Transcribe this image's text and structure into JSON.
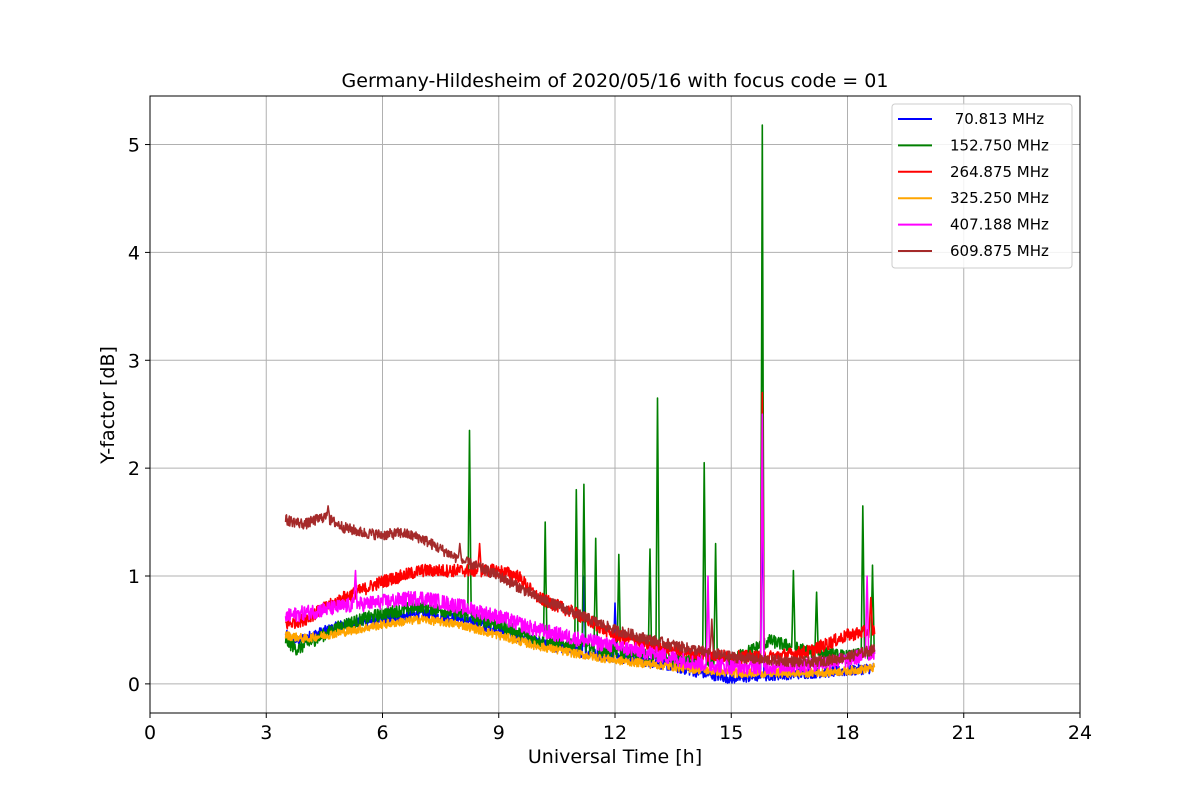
{
  "chart_data": {
    "type": "line",
    "title": "Germany-Hildesheim of 2020/05/16 with focus code = 01",
    "xlabel": "Universal Time [h]",
    "ylabel": "Y-factor [dB]",
    "xlim": [
      0,
      24
    ],
    "ylim": [
      -0.27,
      5.45
    ],
    "xticks": [
      0,
      3,
      6,
      9,
      12,
      15,
      18,
      21,
      24
    ],
    "yticks": [
      0,
      1,
      2,
      3,
      4,
      5
    ],
    "grid": true,
    "legend_position": "top-right",
    "series": [
      {
        "name": " 70.813 MHz",
        "color": "#0000ff",
        "noise": 0.05,
        "points": [
          [
            3.5,
            0.45
          ],
          [
            3.8,
            0.4
          ],
          [
            4.2,
            0.45
          ],
          [
            5,
            0.55
          ],
          [
            6,
            0.6
          ],
          [
            7,
            0.65
          ],
          [
            8,
            0.6
          ],
          [
            9,
            0.5
          ],
          [
            10,
            0.38
          ],
          [
            11,
            0.3
          ],
          [
            12,
            0.25
          ],
          [
            13,
            0.2
          ],
          [
            14,
            0.12
          ],
          [
            15,
            0.05
          ],
          [
            16,
            0.08
          ],
          [
            17,
            0.1
          ],
          [
            18,
            0.12
          ],
          [
            18.7,
            0.15
          ]
        ],
        "spikes": [
          [
            11.2,
            1.0
          ],
          [
            12.0,
            0.75
          ],
          [
            15.8,
            2.0
          ]
        ]
      },
      {
        "name": "152.750 MHz",
        "color": "#008000",
        "noise": 0.06,
        "points": [
          [
            3.5,
            0.4
          ],
          [
            3.8,
            0.32
          ],
          [
            4.2,
            0.4
          ],
          [
            5,
            0.55
          ],
          [
            6,
            0.65
          ],
          [
            7,
            0.72
          ],
          [
            8,
            0.65
          ],
          [
            9,
            0.55
          ],
          [
            10,
            0.4
          ],
          [
            11,
            0.35
          ],
          [
            12,
            0.3
          ],
          [
            13,
            0.25
          ],
          [
            14,
            0.2
          ],
          [
            15,
            0.22
          ],
          [
            16,
            0.4
          ],
          [
            17,
            0.3
          ],
          [
            18,
            0.25
          ],
          [
            18.7,
            0.3
          ]
        ],
        "spikes": [
          [
            8.25,
            2.35
          ],
          [
            10.2,
            1.5
          ],
          [
            11.0,
            1.8
          ],
          [
            11.2,
            1.85
          ],
          [
            11.5,
            1.35
          ],
          [
            12.1,
            1.2
          ],
          [
            12.9,
            1.25
          ],
          [
            13.1,
            2.65
          ],
          [
            14.3,
            2.05
          ],
          [
            14.6,
            1.3
          ],
          [
            15.8,
            5.18
          ],
          [
            16.6,
            1.05
          ],
          [
            17.2,
            0.85
          ],
          [
            18.4,
            1.65
          ],
          [
            18.65,
            1.1
          ]
        ]
      },
      {
        "name": "264.875 MHz",
        "color": "#ff0000",
        "noise": 0.06,
        "points": [
          [
            3.5,
            0.55
          ],
          [
            4,
            0.6
          ],
          [
            5,
            0.8
          ],
          [
            6,
            0.95
          ],
          [
            7,
            1.05
          ],
          [
            8,
            1.05
          ],
          [
            9,
            1.05
          ],
          [
            9.5,
            1.0
          ],
          [
            10,
            0.8
          ],
          [
            11,
            0.65
          ],
          [
            12,
            0.45
          ],
          [
            13,
            0.35
          ],
          [
            14,
            0.28
          ],
          [
            15,
            0.25
          ],
          [
            16,
            0.25
          ],
          [
            17,
            0.3
          ],
          [
            18,
            0.45
          ],
          [
            18.7,
            0.5
          ]
        ],
        "spikes": [
          [
            8.5,
            1.3
          ],
          [
            15.8,
            2.7
          ],
          [
            18.6,
            0.8
          ]
        ]
      },
      {
        "name": "325.250 MHz",
        "color": "#ffa500",
        "noise": 0.04,
        "points": [
          [
            3.5,
            0.45
          ],
          [
            4,
            0.42
          ],
          [
            5,
            0.48
          ],
          [
            6,
            0.55
          ],
          [
            7,
            0.6
          ],
          [
            8,
            0.55
          ],
          [
            9,
            0.45
          ],
          [
            10,
            0.35
          ],
          [
            11,
            0.28
          ],
          [
            12,
            0.22
          ],
          [
            13,
            0.18
          ],
          [
            14,
            0.14
          ],
          [
            15,
            0.1
          ],
          [
            16,
            0.1
          ],
          [
            17,
            0.1
          ],
          [
            18,
            0.12
          ],
          [
            18.7,
            0.15
          ]
        ],
        "spikes": []
      },
      {
        "name": "407.188 MHz",
        "color": "#ff00ff",
        "noise": 0.07,
        "points": [
          [
            3.5,
            0.62
          ],
          [
            4,
            0.66
          ],
          [
            5,
            0.72
          ],
          [
            6,
            0.76
          ],
          [
            7,
            0.8
          ],
          [
            8,
            0.72
          ],
          [
            9,
            0.62
          ],
          [
            10,
            0.5
          ],
          [
            11,
            0.42
          ],
          [
            12,
            0.35
          ],
          [
            13,
            0.28
          ],
          [
            14,
            0.2
          ],
          [
            15,
            0.16
          ],
          [
            16,
            0.16
          ],
          [
            17,
            0.18
          ],
          [
            18,
            0.22
          ],
          [
            18.7,
            0.3
          ]
        ],
        "spikes": [
          [
            5.3,
            1.05
          ],
          [
            14.4,
            1.0
          ],
          [
            15.8,
            2.5
          ],
          [
            18.5,
            1.0
          ]
        ]
      },
      {
        "name": "609.875 MHz",
        "color": "#a52a2a",
        "noise": 0.05,
        "points": [
          [
            3.5,
            1.52
          ],
          [
            4,
            1.48
          ],
          [
            4.5,
            1.55
          ],
          [
            5,
            1.45
          ],
          [
            5.5,
            1.4
          ],
          [
            6,
            1.38
          ],
          [
            6.5,
            1.4
          ],
          [
            7,
            1.35
          ],
          [
            7.5,
            1.25
          ],
          [
            8,
            1.15
          ],
          [
            8.5,
            1.08
          ],
          [
            9,
            1.0
          ],
          [
            9.5,
            0.9
          ],
          [
            10,
            0.8
          ],
          [
            11,
            0.65
          ],
          [
            12,
            0.5
          ],
          [
            13,
            0.4
          ],
          [
            14,
            0.32
          ],
          [
            15,
            0.25
          ],
          [
            16,
            0.22
          ],
          [
            17,
            0.2
          ],
          [
            17.5,
            0.22
          ],
          [
            18,
            0.25
          ],
          [
            18.7,
            0.32
          ]
        ],
        "spikes": [
          [
            4.6,
            1.65
          ],
          [
            8.0,
            1.3
          ],
          [
            14.5,
            0.6
          ]
        ]
      }
    ]
  }
}
